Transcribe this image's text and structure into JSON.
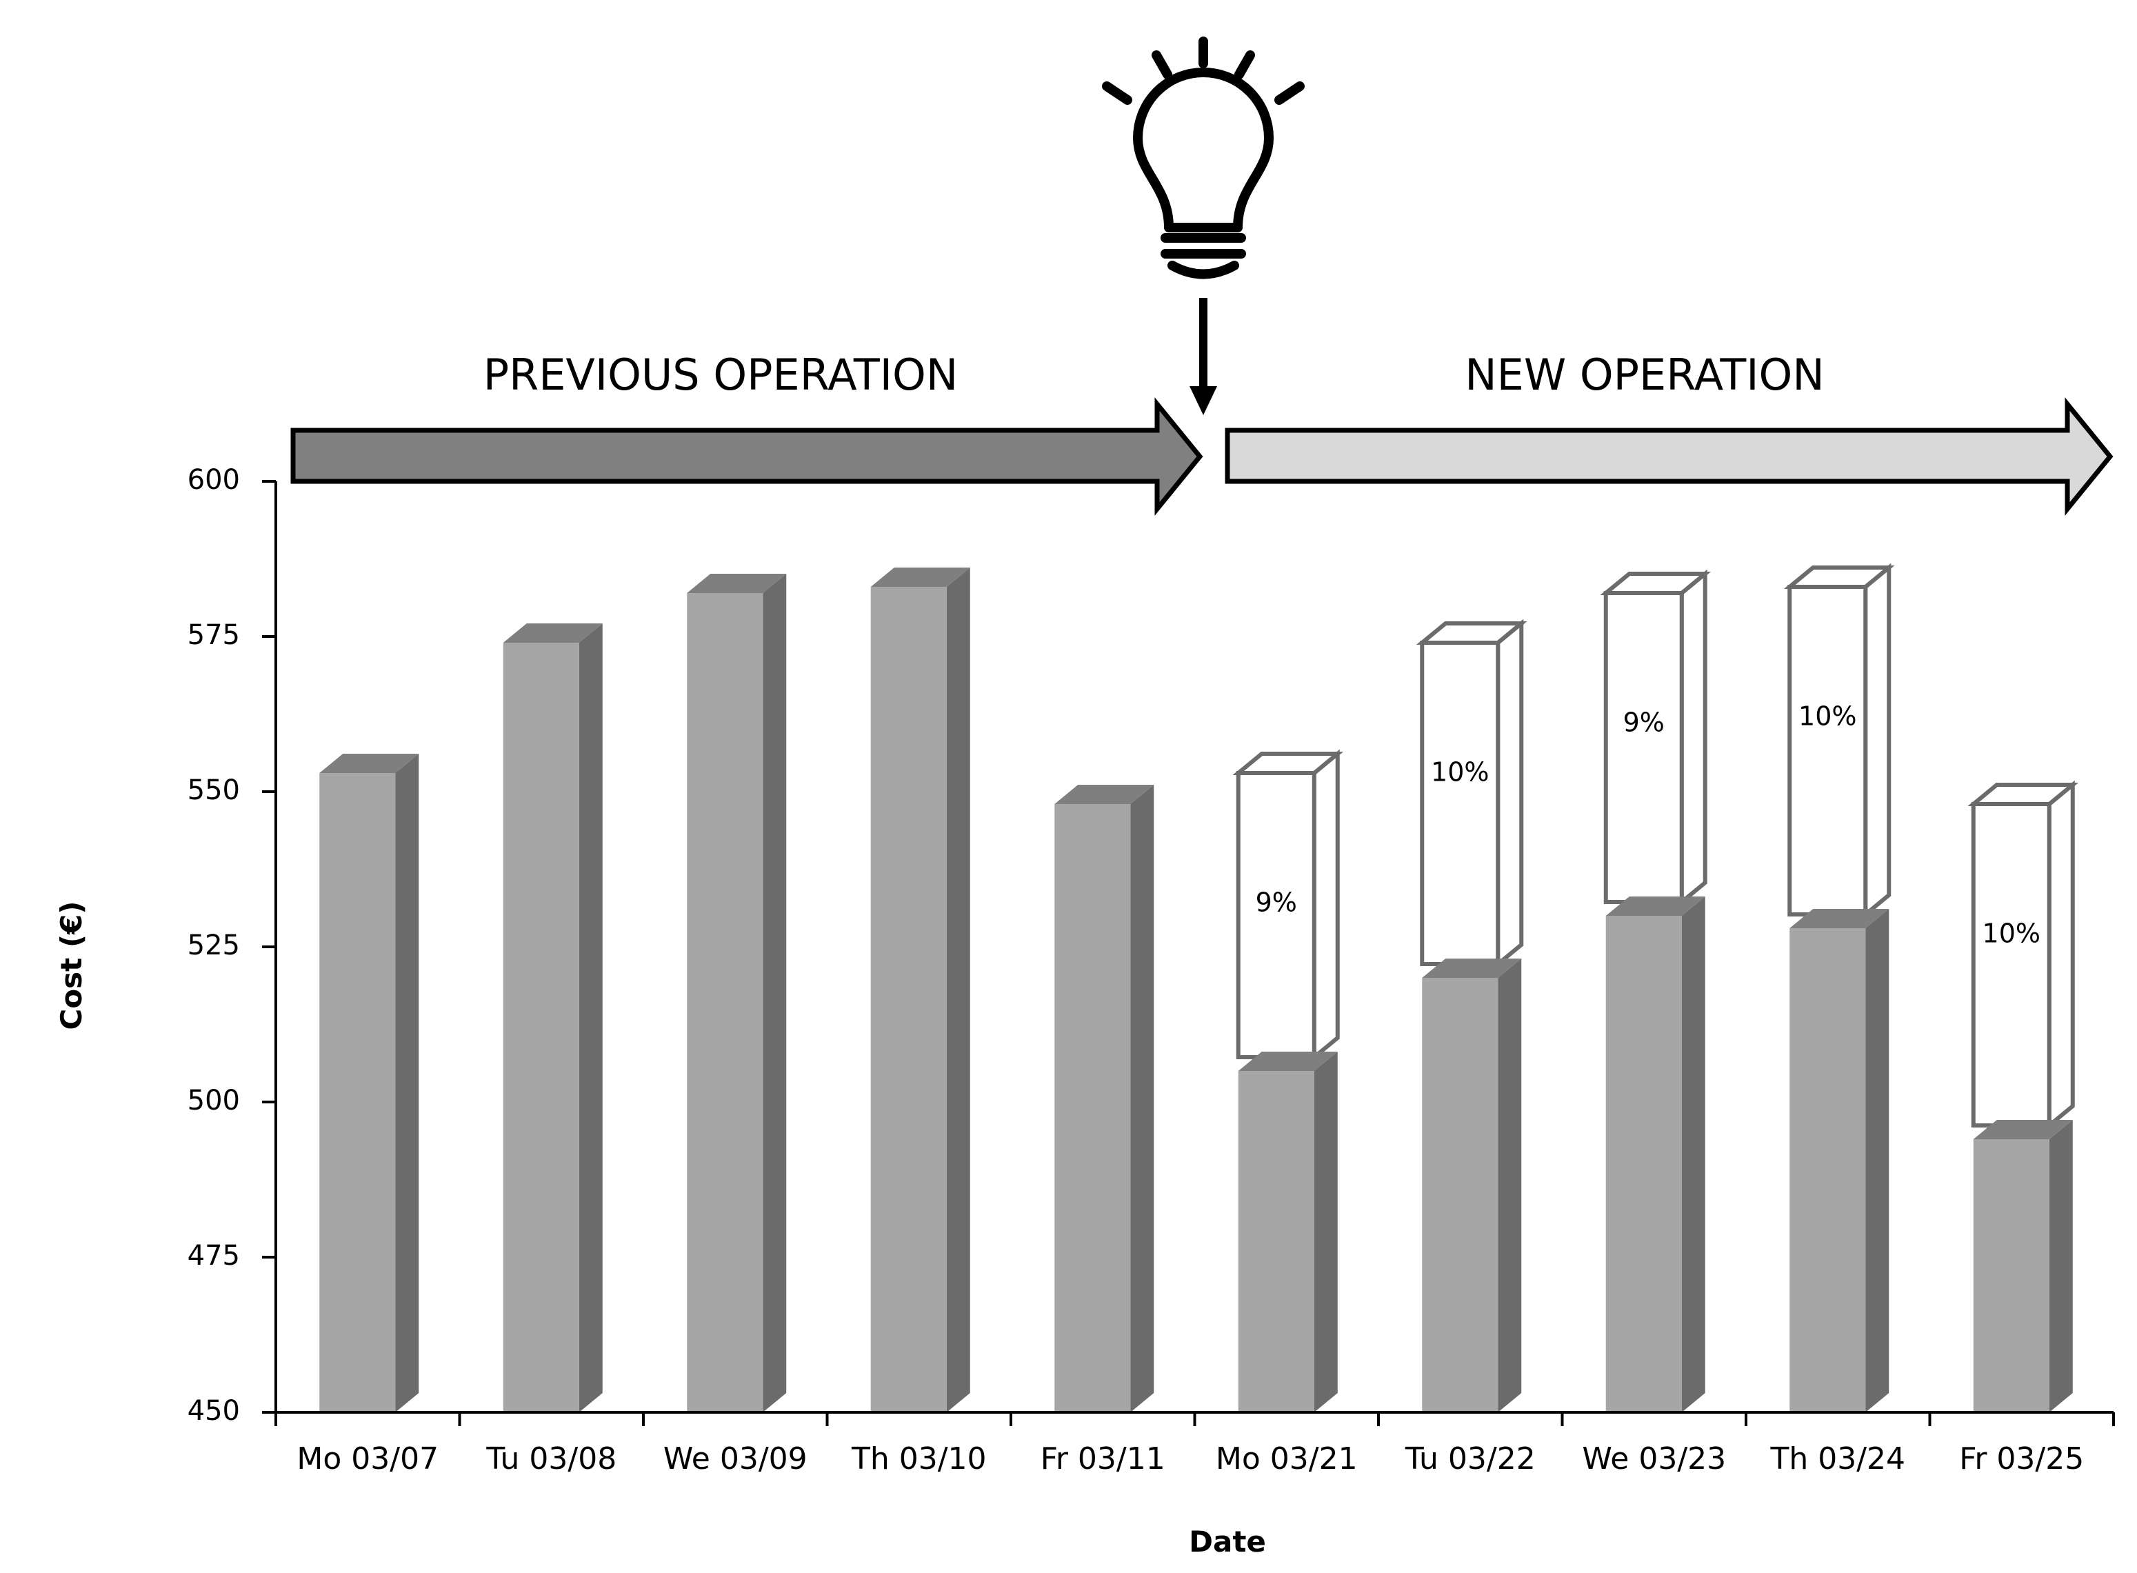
{
  "chart_data": {
    "type": "bar",
    "xlabel": "Date",
    "ylabel": "Cost (€)",
    "ylim": [
      450,
      600
    ],
    "yticks": [
      450,
      475,
      500,
      525,
      550,
      575,
      600
    ],
    "grid": false,
    "legend": "none",
    "categories": [
      "Mo 03/07",
      "Tu 03/08",
      "We 03/09",
      "Th 03/10",
      "Fr 03/11",
      "Mo 03/21",
      "Tu 03/22",
      "We 03/23",
      "Th 03/24",
      "Fr 03/25"
    ],
    "series": [
      {
        "values": [
          553,
          574,
          582,
          583,
          548,
          505,
          520,
          530,
          528,
          494
        ]
      },
      {
        "values": [
          null,
          null,
          null,
          null,
          null,
          553,
          574,
          582,
          583,
          548
        ]
      }
    ],
    "annotations": [
      {
        "category": "Mo 03/21",
        "text": "9%"
      },
      {
        "category": "Tu 03/22",
        "text": "10%"
      },
      {
        "category": "We 03/23",
        "text": "9%"
      },
      {
        "category": "Th 03/24",
        "text": "10%"
      },
      {
        "category": "Fr 03/25",
        "text": "10%"
      }
    ],
    "phases": [
      {
        "label": "PREVIOUS OPERATION",
        "from": "Mo 03/07",
        "to": "Fr 03/11"
      },
      {
        "label": "NEW OPERATION",
        "from": "Mo 03/21",
        "to": "Fr 03/25"
      }
    ],
    "icon": "lightbulb-icon",
    "colors": {
      "bar_front": "#a6a6a6",
      "bar_side": "#6b6b6b",
      "bar_top": "#7f7f7f",
      "ghost_stroke": "#6b6b6b",
      "previous_arrow": "#808080",
      "new_arrow": "#d9d9d9",
      "axis": "#000000"
    }
  }
}
